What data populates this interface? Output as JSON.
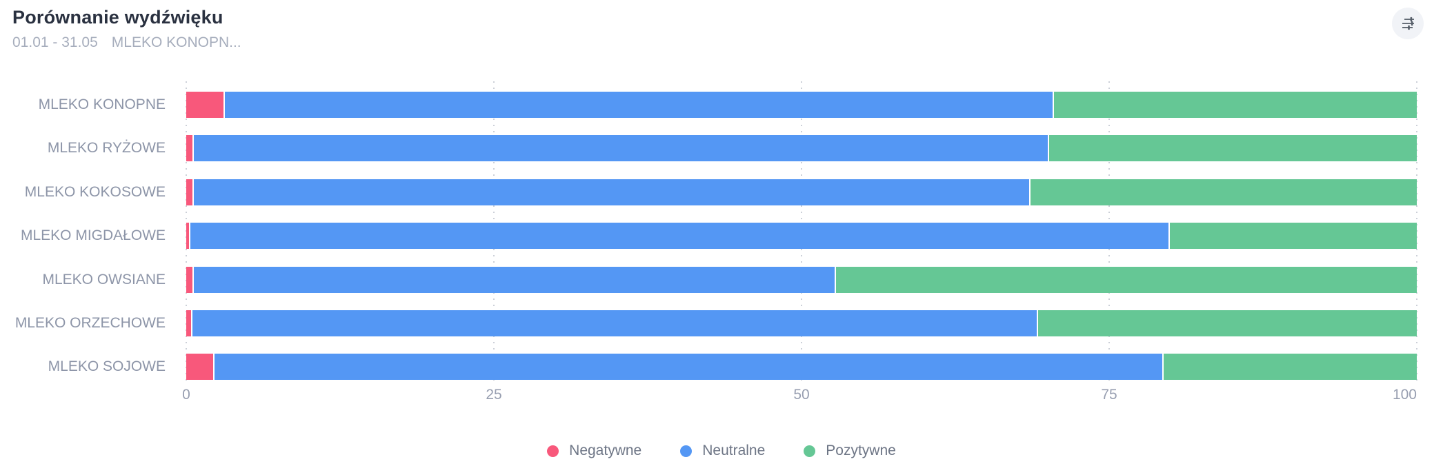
{
  "header": {
    "title": "Porównanie wydźwięku",
    "subtitle": {
      "period": "01.01 - 31.05",
      "keyword": "MLEKO KONOPN..."
    },
    "settings_icon": "sliders-icon"
  },
  "colors": {
    "negative": "#f8587b",
    "neutral": "#5497f4",
    "positive": "#65c795",
    "grid": "#ccd0d8",
    "title_text": "#2a3140",
    "category_text": "#8d95a8",
    "axis_text": "#979eb0",
    "legend_text": "#6d7585",
    "settings_bg": "#f1f3f7"
  },
  "chart_data": {
    "type": "bar",
    "orientation": "horizontal",
    "stacked": true,
    "unit": "percent",
    "title": "Porównanie wydźwięku",
    "categories": [
      "MLEKO KONOPNE",
      "MLEKO RYŻOWE",
      "MLEKO KOKOSOWE",
      "MLEKO MIGDAŁOWE",
      "MLEKO OWSIANE",
      "MLEKO ORZECHOWE",
      "MLEKO SOJOWE"
    ],
    "series": [
      {
        "name": "Negatywne",
        "color": "#f8587b",
        "values": [
          3.0,
          0.5,
          0.5,
          0.2,
          0.5,
          0.4,
          2.2
        ]
      },
      {
        "name": "Neutralne",
        "color": "#5497f4",
        "values": [
          67.4,
          69.5,
          68.0,
          79.6,
          52.2,
          68.7,
          77.1
        ]
      },
      {
        "name": "Pozytywne",
        "color": "#65c795",
        "values": [
          29.6,
          30.0,
          31.5,
          20.2,
          47.3,
          30.9,
          20.7
        ]
      }
    ],
    "x_ticks": [
      0,
      25,
      50,
      75,
      100
    ],
    "xlim": [
      0,
      100
    ],
    "grid": "dotted-vertical",
    "legend_position": "bottom"
  },
  "legend": {
    "items": [
      {
        "label": "Negatywne",
        "color": "#f8587b"
      },
      {
        "label": "Neutralne",
        "color": "#5497f4"
      },
      {
        "label": "Pozytywne",
        "color": "#65c795"
      }
    ]
  }
}
